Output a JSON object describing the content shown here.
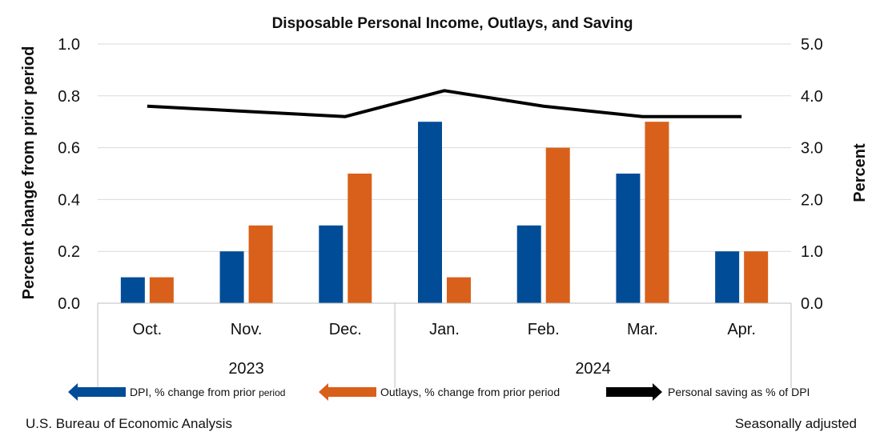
{
  "chart_data": {
    "type": "bar",
    "title": "Disposable Personal Income, Outlays, and Saving",
    "ylabel": "Percent change from prior period",
    "y2label": "Percent",
    "ylim": [
      0.0,
      1.0
    ],
    "y2lim": [
      0.0,
      5.0
    ],
    "yticks": [
      "0.0",
      "0.2",
      "0.4",
      "0.6",
      "0.8",
      "1.0"
    ],
    "y2ticks": [
      "0.0",
      "1.0",
      "2.0",
      "3.0",
      "4.0",
      "5.0"
    ],
    "categories": [
      "Oct.",
      "Nov.",
      "Dec.",
      "Jan.",
      "Feb.",
      "Mar.",
      "Apr."
    ],
    "groups": [
      {
        "label": "2023",
        "count": 3
      },
      {
        "label": "2024",
        "count": 4
      }
    ],
    "series": [
      {
        "name": "DPI, % change from prior period",
        "type": "bar",
        "axis": "left",
        "color": "#004C97",
        "values": [
          0.1,
          0.2,
          0.3,
          0.7,
          0.3,
          0.5,
          0.2
        ]
      },
      {
        "name": "Outlays, % change from prior period",
        "type": "bar",
        "axis": "left",
        "color": "#D9601A",
        "values": [
          0.1,
          0.3,
          0.5,
          0.1,
          0.6,
          0.7,
          0.2
        ]
      },
      {
        "name": "Personal saving as % of DPI",
        "type": "line",
        "axis": "right",
        "color": "#000000",
        "values": [
          3.8,
          3.7,
          3.6,
          4.1,
          3.8,
          3.6,
          3.6
        ]
      }
    ],
    "legend": [
      {
        "label_main": "DPI, % change from prior ",
        "label_small": "period",
        "color": "#004C97"
      },
      {
        "label_main": "Outlays, % change from prior period",
        "label_small": "",
        "color": "#D9601A"
      },
      {
        "label_main": "Personal saving as % of DPI",
        "label_small": "",
        "color": "#000000"
      }
    ],
    "legend_position": "bottom"
  },
  "footer": {
    "source": "U.S. Bureau of Economic Analysis",
    "note": "Seasonally adjusted"
  }
}
